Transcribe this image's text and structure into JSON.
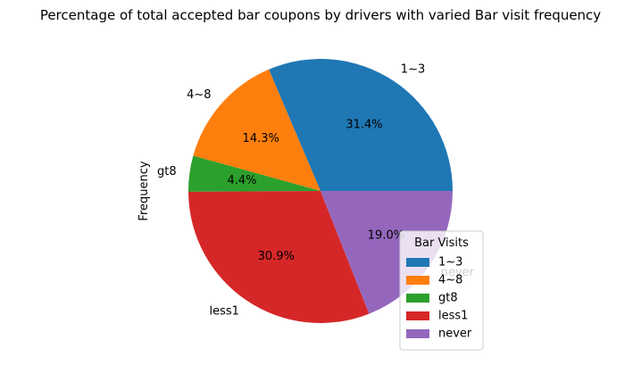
{
  "chart_data": {
    "type": "pie",
    "title": "Percentage of total accepted bar coupons by drivers with varied Bar visit frequency",
    "ylabel": "Frequency",
    "categories": [
      "1~3",
      "4~8",
      "gt8",
      "less1",
      "never"
    ],
    "values": [
      31.4,
      14.3,
      4.4,
      30.9,
      19.0
    ],
    "pct_labels": [
      "31.4%",
      "14.3%",
      "4.4%",
      "30.9%",
      "19.0%"
    ],
    "colors": [
      "#1f77b4",
      "#ff7f0e",
      "#2ca02c",
      "#d62728",
      "#9467bd"
    ],
    "start_angle_deg": 0,
    "direction": "counterclockwise",
    "legend": {
      "title": "Bar Visits",
      "placement": "lower-right",
      "entries": [
        "1~3",
        "4~8",
        "gt8",
        "less1",
        "never"
      ]
    }
  }
}
